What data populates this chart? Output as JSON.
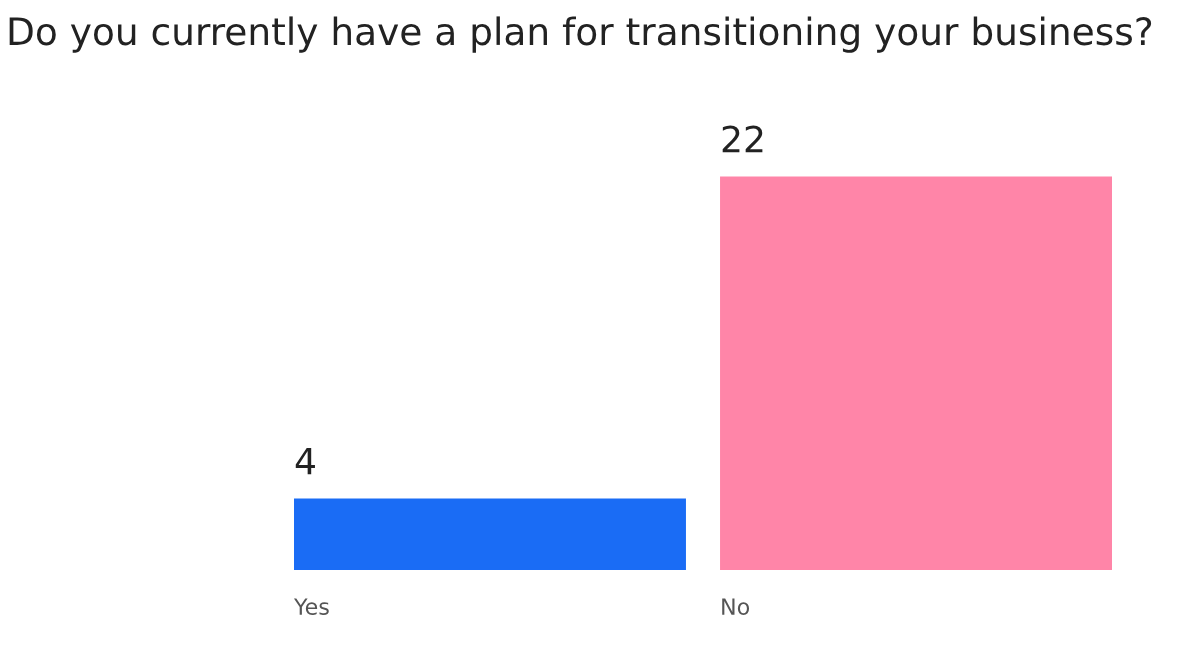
{
  "chart_data": {
    "type": "bar",
    "title": "Do you currently have a plan for transitioning your business?",
    "categories": [
      "Yes",
      "No"
    ],
    "values": [
      4,
      22
    ],
    "colors": [
      "#1a6cf5",
      "#ff85a8"
    ],
    "data_labels": true
  }
}
